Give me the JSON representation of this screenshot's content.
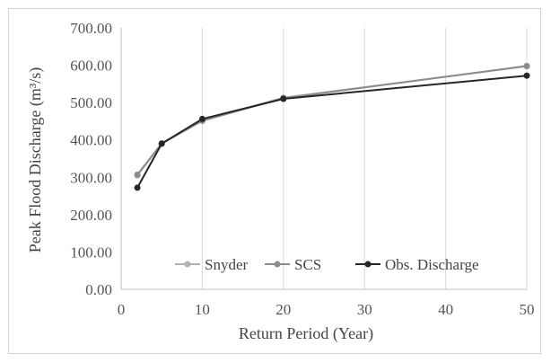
{
  "chart_data": {
    "type": "line",
    "title": "",
    "xlabel": "Return Period (Year)",
    "ylabel": "Peak Flood Discharge (m³/s)",
    "xlim": [
      0,
      50
    ],
    "ylim": [
      0,
      700
    ],
    "xticks": [
      0,
      10,
      20,
      30,
      40,
      50
    ],
    "xtick_labels": [
      "0",
      "10",
      "20",
      "30",
      "40",
      "50"
    ],
    "yticks": [
      0,
      100,
      200,
      300,
      400,
      500,
      600,
      700
    ],
    "ytick_labels": [
      "0.00",
      "100.00",
      "200.00",
      "300.00",
      "400.00",
      "500.00",
      "600.00",
      "700.00"
    ],
    "grid": "vertical",
    "legend_position": "bottom-right",
    "series": [
      {
        "name": "Snyder",
        "color": "#b3b3b3",
        "x": [
          2,
          5,
          10,
          20,
          50
        ],
        "y": [
          305,
          390,
          452,
          513,
          597
        ]
      },
      {
        "name": "SCS",
        "color": "#8c8c8c",
        "x": [
          2,
          5,
          10,
          20,
          50
        ],
        "y": [
          307,
          391,
          451,
          512,
          598
        ]
      },
      {
        "name": "Obs. Discharge",
        "color": "#262626",
        "x": [
          2,
          5,
          10,
          20,
          50
        ],
        "y": [
          272,
          390,
          456,
          510,
          572
        ]
      }
    ]
  }
}
